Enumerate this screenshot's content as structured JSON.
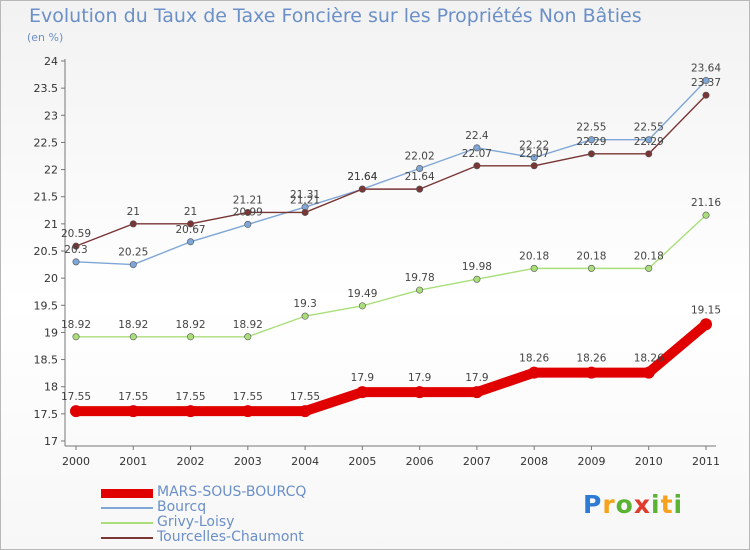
{
  "title": "Evolution du Taux de Taxe Foncière sur les Propriétés Non Bâties",
  "unit": "(en %)",
  "logo": "Proxiti",
  "chart_data": {
    "type": "line",
    "x": [
      "2000",
      "2001",
      "2002",
      "2003",
      "2004",
      "2005",
      "2006",
      "2007",
      "2008",
      "2009",
      "2010",
      "2011"
    ],
    "ylim": [
      17,
      24
    ],
    "yticks": [
      "17",
      "17.5",
      "18",
      "18.5",
      "19",
      "19.5",
      "20",
      "20.5",
      "21",
      "21.5",
      "22",
      "22.5",
      "23",
      "23.5",
      "24"
    ],
    "grid": false,
    "legend": "bottom-left",
    "series": [
      {
        "name": "MARS-SOUS-BOURCQ",
        "color": "#e00000",
        "values": [
          17.55,
          17.55,
          17.55,
          17.55,
          17.55,
          17.9,
          17.9,
          17.9,
          18.26,
          18.26,
          18.26,
          19.15
        ],
        "labels": [
          "17.55",
          "17.55",
          "17.55",
          "17.55",
          "17.55",
          "17.9",
          "17.9",
          "17.9",
          "18.26",
          "18.26",
          "18.26",
          "19.15"
        ]
      },
      {
        "name": "Bourcq",
        "color": "#7ea6d6",
        "values": [
          20.3,
          20.25,
          20.67,
          20.99,
          21.31,
          21.64,
          22.02,
          22.4,
          22.22,
          22.55,
          22.55,
          23.64
        ],
        "labels": [
          "20.3",
          "20.25",
          "20.67",
          "20.99",
          "21.31",
          "21.64",
          "22.02",
          "22.4",
          "22.22",
          "22.55",
          "22.55",
          "23.64"
        ]
      },
      {
        "name": "Grivy-Loisy",
        "color": "#a9de7a",
        "values": [
          18.92,
          18.92,
          18.92,
          18.92,
          19.3,
          19.49,
          19.78,
          19.98,
          20.18,
          20.18,
          20.18,
          21.16
        ],
        "labels": [
          "18.92",
          "18.92",
          "18.92",
          "18.92",
          "19.3",
          "19.49",
          "19.78",
          "19.98",
          "20.18",
          "20.18",
          "20.18",
          "21.16"
        ]
      },
      {
        "name": "Tourcelles-Chaumont",
        "color": "#7a3535",
        "values": [
          20.59,
          21,
          21,
          21.21,
          21.21,
          21.64,
          21.64,
          22.07,
          22.07,
          22.29,
          22.29,
          23.37
        ],
        "labels": [
          "20.59",
          "21",
          "21",
          "21.21",
          "21.21",
          "21.64",
          "21.64",
          "22.07",
          "22.07",
          "22.29",
          "22.29",
          "23.37"
        ]
      }
    ]
  }
}
